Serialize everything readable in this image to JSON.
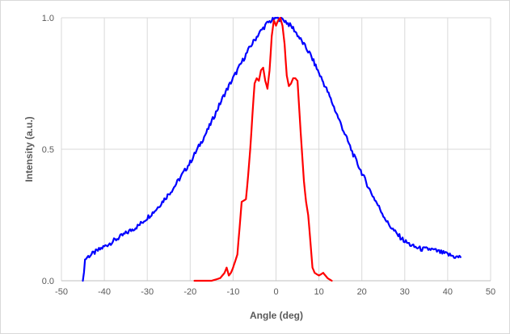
{
  "chart_data": {
    "type": "line",
    "xlabel": "Angle (deg)",
    "ylabel": "Intensity (a.u.)",
    "xlim": [
      -50,
      50
    ],
    "ylim": [
      0,
      1.0
    ],
    "x_ticks": [
      -50,
      -40,
      -30,
      -20,
      -10,
      0,
      10,
      20,
      30,
      40,
      50
    ],
    "y_ticks": [
      "0.0",
      "0.5",
      "1.0"
    ],
    "grid": "vertical-and-horizontal",
    "legend": "none",
    "series": [
      {
        "color": "#0000ff",
        "x": [
          -45,
          -44.5,
          -44,
          -43,
          -42,
          -40,
          -38,
          -36,
          -34,
          -32,
          -30,
          -28,
          -26,
          -24,
          -22,
          -20,
          -18,
          -16,
          -14,
          -12,
          -10,
          -8,
          -6,
          -4,
          -2,
          0,
          2,
          4,
          6,
          8,
          10,
          12,
          14,
          16,
          18,
          20,
          22,
          24,
          26,
          28,
          30,
          32,
          34,
          36,
          38,
          40,
          42,
          43
        ],
        "y": [
          0.0,
          0.08,
          0.09,
          0.1,
          0.11,
          0.13,
          0.15,
          0.17,
          0.19,
          0.21,
          0.24,
          0.27,
          0.31,
          0.35,
          0.4,
          0.45,
          0.51,
          0.57,
          0.64,
          0.71,
          0.77,
          0.83,
          0.89,
          0.94,
          0.98,
          1.0,
          0.99,
          0.96,
          0.91,
          0.86,
          0.79,
          0.72,
          0.64,
          0.56,
          0.48,
          0.41,
          0.34,
          0.28,
          0.22,
          0.18,
          0.15,
          0.13,
          0.12,
          0.12,
          0.11,
          0.1,
          0.09,
          0.09
        ]
      },
      {
        "color": "#ff0000",
        "x": [
          -19,
          -15,
          -13,
          -12,
          -11.5,
          -11,
          -10.5,
          -10,
          -9,
          -8,
          -7,
          -6.5,
          -6,
          -5.5,
          -5,
          -4.5,
          -4,
          -3.5,
          -3,
          -2.5,
          -2,
          -1.5,
          -1,
          -0.5,
          0,
          0.5,
          1,
          1.5,
          2,
          2.5,
          3,
          3.5,
          4,
          4.5,
          5,
          5.5,
          6,
          6.5,
          7,
          7.5,
          8,
          8.5,
          9,
          10,
          11,
          12,
          13
        ],
        "y": [
          0.0,
          0.0,
          0.01,
          0.03,
          0.05,
          0.02,
          0.03,
          0.05,
          0.1,
          0.3,
          0.31,
          0.4,
          0.5,
          0.63,
          0.75,
          0.77,
          0.76,
          0.8,
          0.81,
          0.76,
          0.73,
          0.8,
          0.93,
          0.99,
          0.97,
          0.99,
          1.0,
          0.97,
          0.9,
          0.78,
          0.74,
          0.75,
          0.77,
          0.77,
          0.76,
          0.63,
          0.5,
          0.38,
          0.3,
          0.25,
          0.15,
          0.05,
          0.03,
          0.02,
          0.03,
          0.01,
          0.0
        ]
      }
    ]
  }
}
